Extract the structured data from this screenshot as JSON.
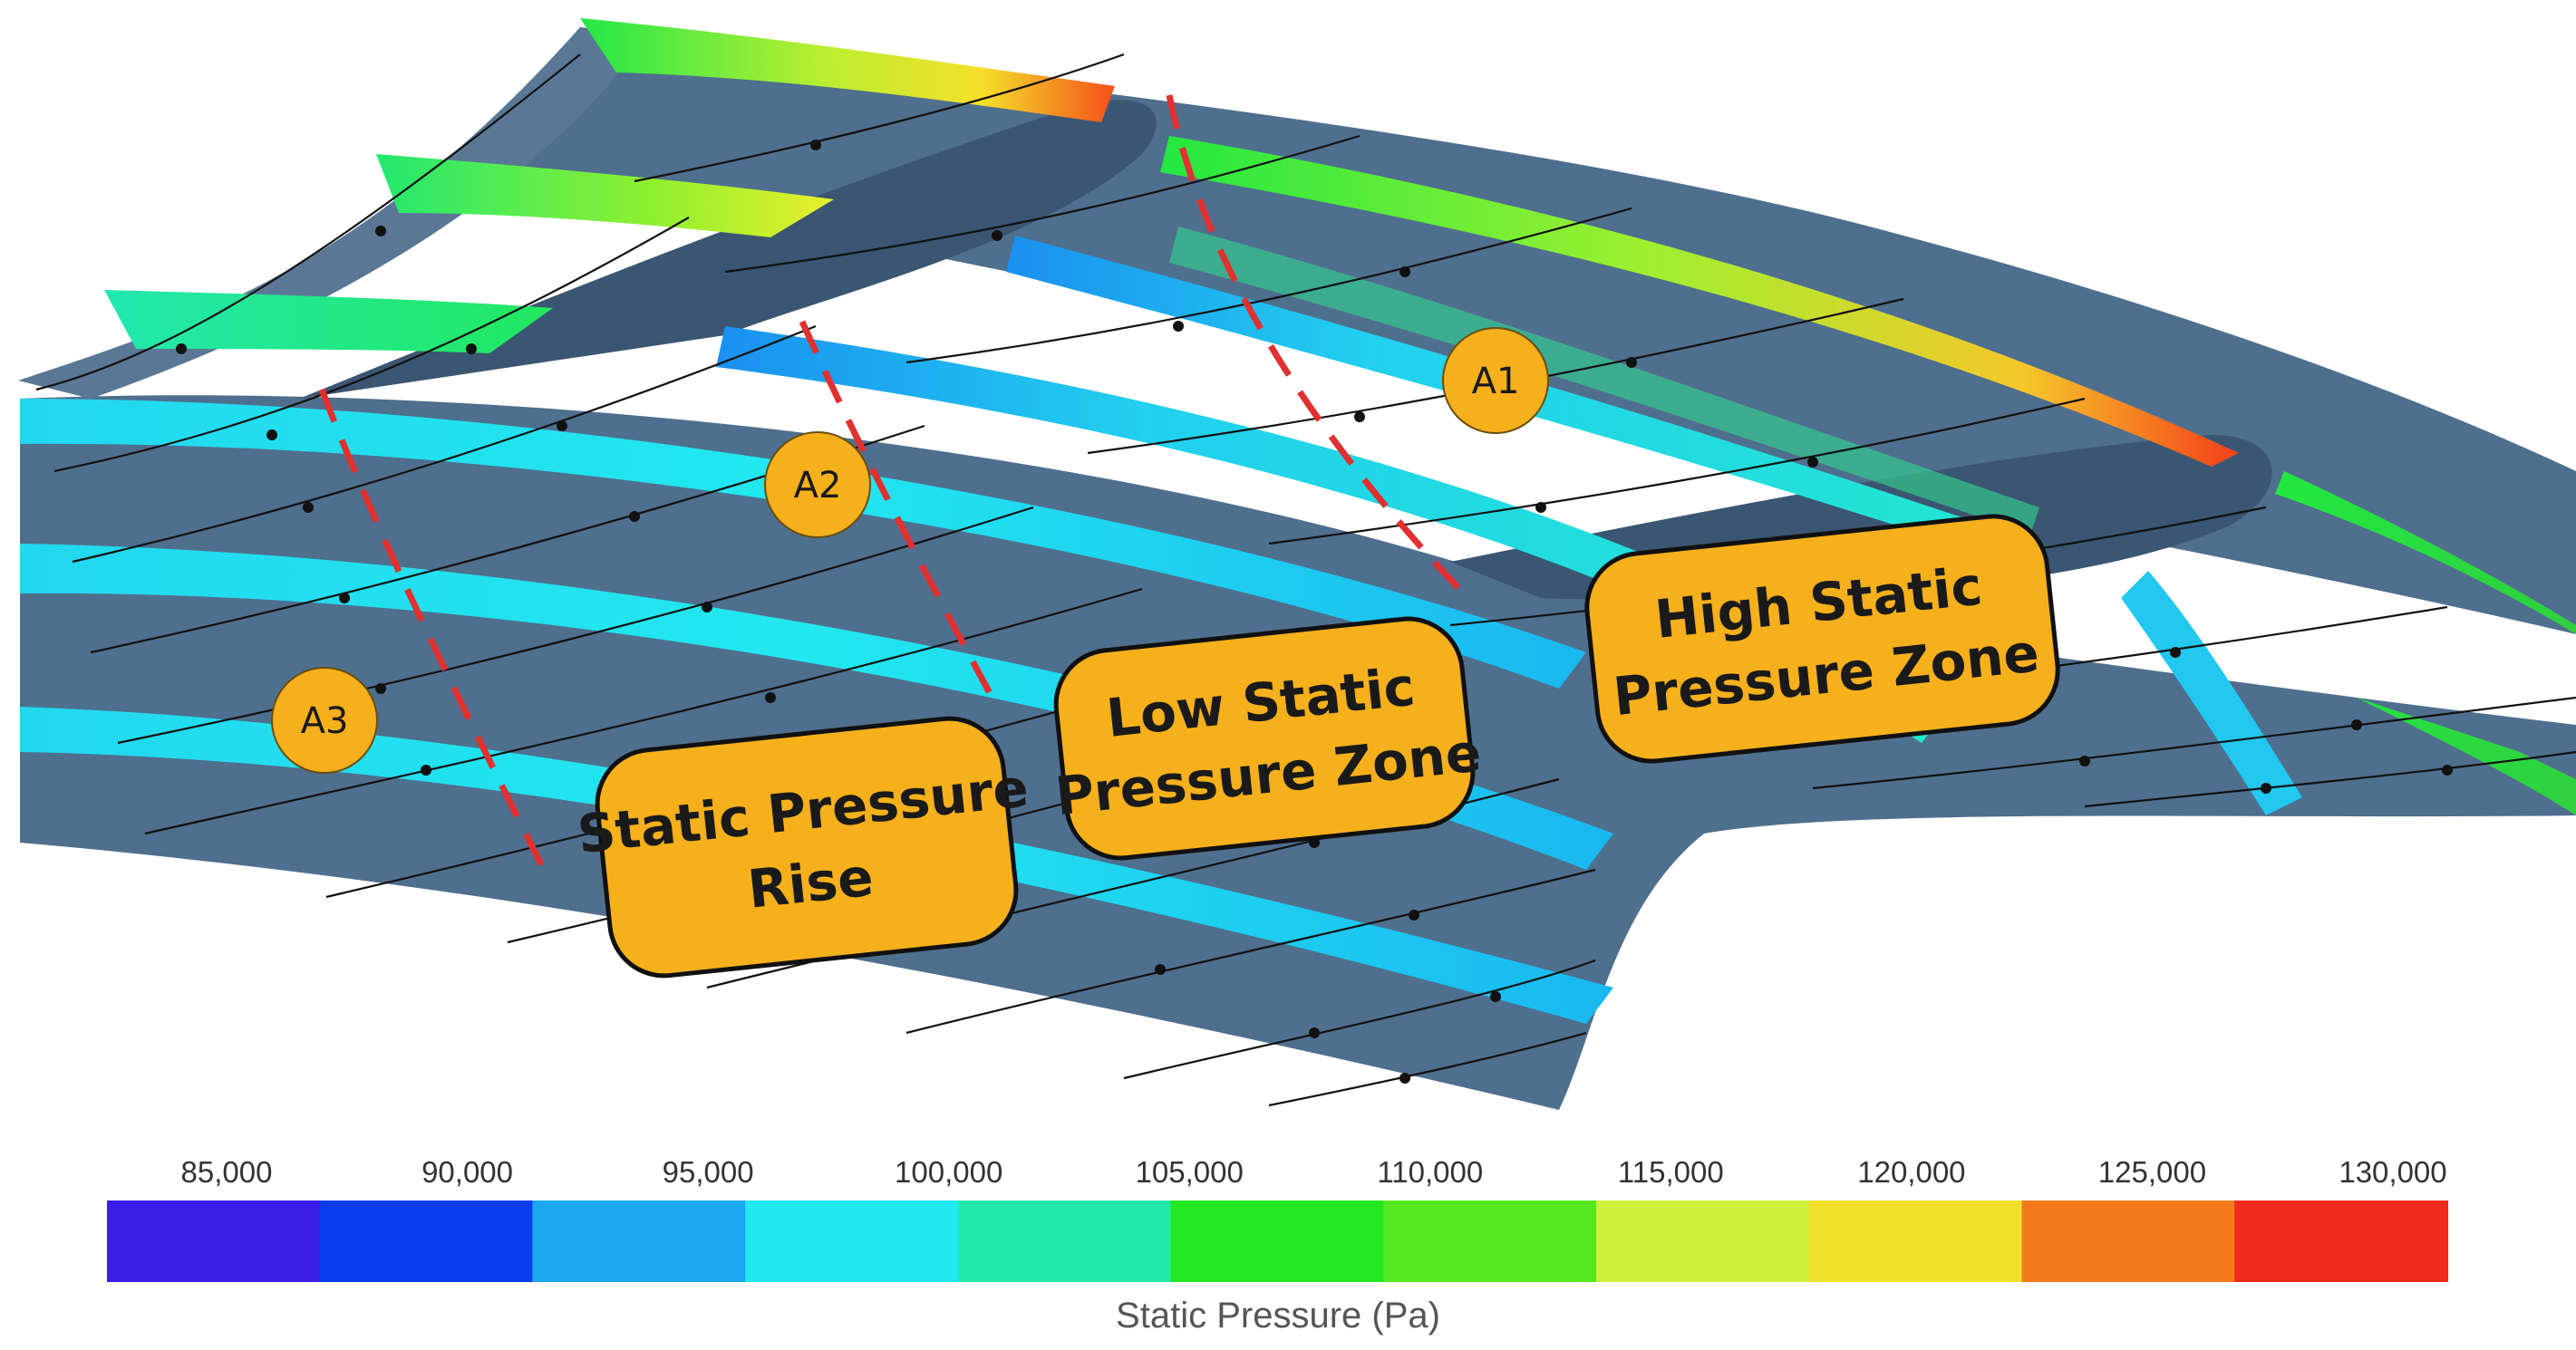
{
  "colorbar": {
    "title": "Static Pressure (Pa)",
    "tick_labels": [
      "85,000",
      "90,000",
      "95,000",
      "100,000",
      "105,000",
      "110,000",
      "115,000",
      "120,000",
      "125,000",
      "130,000"
    ],
    "colors": [
      "#3a1ee8",
      "#0a3ef0",
      "#1aa8f0",
      "#22e8ef",
      "#22e8a8",
      "#22e822",
      "#55e81e",
      "#cff03a",
      "#f0e02a",
      "#f57a1a",
      "#f02a1a"
    ]
  },
  "markers": {
    "a1": "A1",
    "a2": "A2",
    "a3": "A3"
  },
  "callouts": {
    "high_zone": {
      "line1": "High Static",
      "line2": "Pressure Zone"
    },
    "low_zone": {
      "line1": "Low Static",
      "line2": "Pressure Zone"
    },
    "rise": {
      "line1": "Static Pressure",
      "line2": "Rise"
    }
  },
  "style": {
    "surface_color": "#4f6f8e",
    "callout_fill": "#f5b01c",
    "dashed_line_color": "#e03030"
  }
}
